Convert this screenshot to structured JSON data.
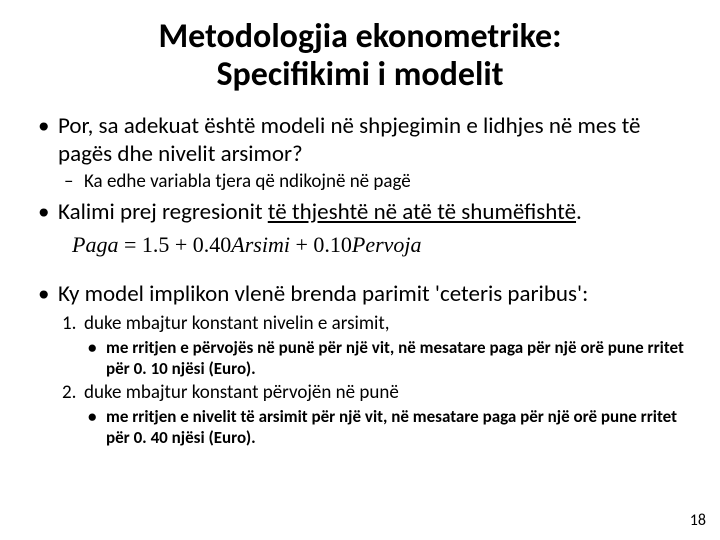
{
  "title": {
    "line1": "Metodologjia ekonometrike:",
    "line2": "Specifikimi i modelit"
  },
  "bullets": {
    "b1": "Por, sa adekuat është modeli në shpjegimin e lidhjes në mes të pagës dhe nivelit arsimor?",
    "b1_sub1": "Ka edhe variabla tjera që ndikojnë në pagë",
    "b2_pre": "Kalimi prej regresionit ",
    "b2_underlined": "të thjeshtë në atë të shumëfishtë",
    "b2_post": ".",
    "b3": "Ky model implikon vlenë brenda parimit 'ceteris paribus':",
    "b3_n1": "duke mbajtur konstant nivelin e arsimit,",
    "b3_n1_sub": "me rritjen e përvojës në punë për një vit, në mesatare paga për një orë pune rritet për 0. 10 njësi (Euro).",
    "b3_n2": "duke mbajtur konstant përvojën në punë",
    "b3_n2_sub": "me rritjen e nivelit të arsimit për një vit, në mesatare paga për një orë pune rritet për 0. 40 njësi (Euro)."
  },
  "equation": {
    "lhs": "Paga",
    "eq": " = ",
    "c0": "1.5",
    "plus": " + ",
    "c1": "0.40",
    "v1": "Arsimi",
    "c2": "0.10",
    "v2": "Pervoja"
  },
  "page_number": "18"
}
